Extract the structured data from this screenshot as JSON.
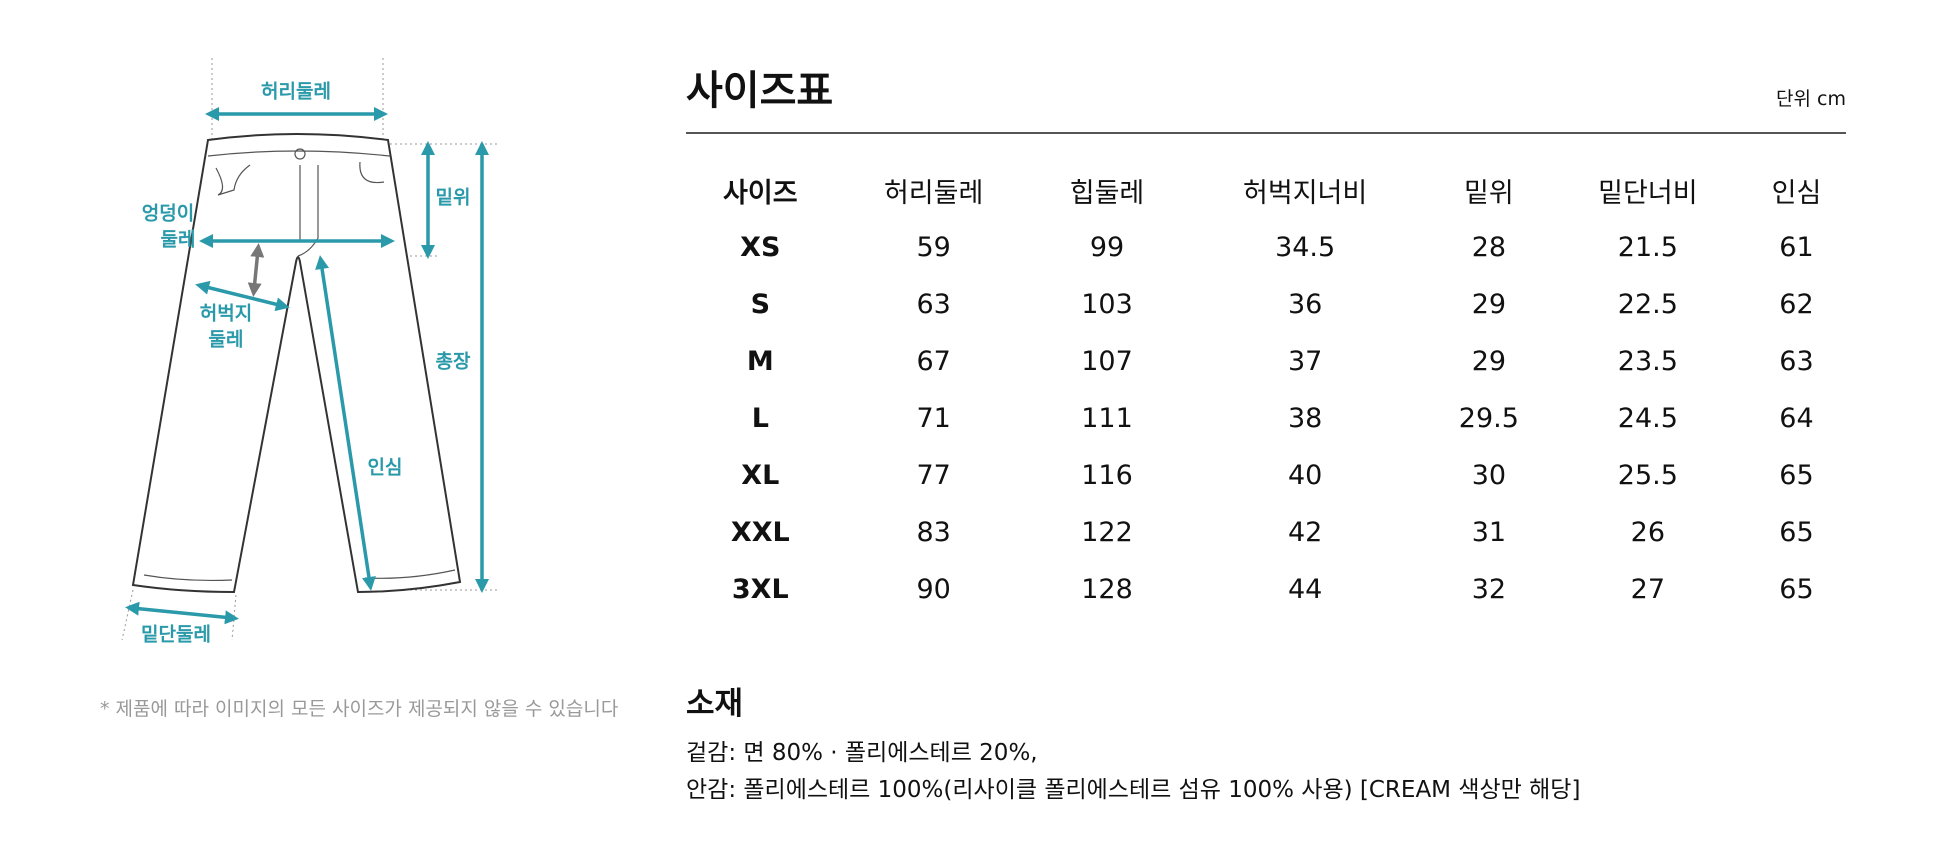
{
  "diagram": {
    "labels": {
      "waist": "허리둘레",
      "rise": "밑위",
      "hip": [
        "엉덩이",
        "둘레"
      ],
      "thigh": [
        "허벅지",
        "둘레"
      ],
      "length": "총장",
      "inseam": "인심",
      "hem": "밑단둘레"
    },
    "note": "* 제품에 따라 이미지의 모든 사이즈가 제공되지 않을 수 있습니다"
  },
  "header": {
    "title": "사이즈표",
    "unit": "단위 cm"
  },
  "table": {
    "columns": [
      "사이즈",
      "허리둘레",
      "힙둘레",
      "허벅지너비",
      "밑위",
      "밑단너비",
      "인심"
    ],
    "rows": [
      [
        "XS",
        "59",
        "99",
        "34.5",
        "28",
        "21.5",
        "61"
      ],
      [
        "S",
        "63",
        "103",
        "36",
        "29",
        "22.5",
        "62"
      ],
      [
        "M",
        "67",
        "107",
        "37",
        "29",
        "23.5",
        "63"
      ],
      [
        "L",
        "71",
        "111",
        "38",
        "29.5",
        "24.5",
        "64"
      ],
      [
        "XL",
        "77",
        "116",
        "40",
        "30",
        "25.5",
        "65"
      ],
      [
        "XXL",
        "83",
        "122",
        "42",
        "31",
        "26",
        "65"
      ],
      [
        "3XL",
        "90",
        "128",
        "44",
        "32",
        "27",
        "65"
      ]
    ]
  },
  "material": {
    "title": "소재",
    "lines": [
      "겉감: 면 80% · 폴리에스테르 20%,",
      "안감: 폴리에스테르 100%(리사이클 폴리에스테르 섬유 100% 사용) [CREAM 색상만 해당]"
    ]
  }
}
